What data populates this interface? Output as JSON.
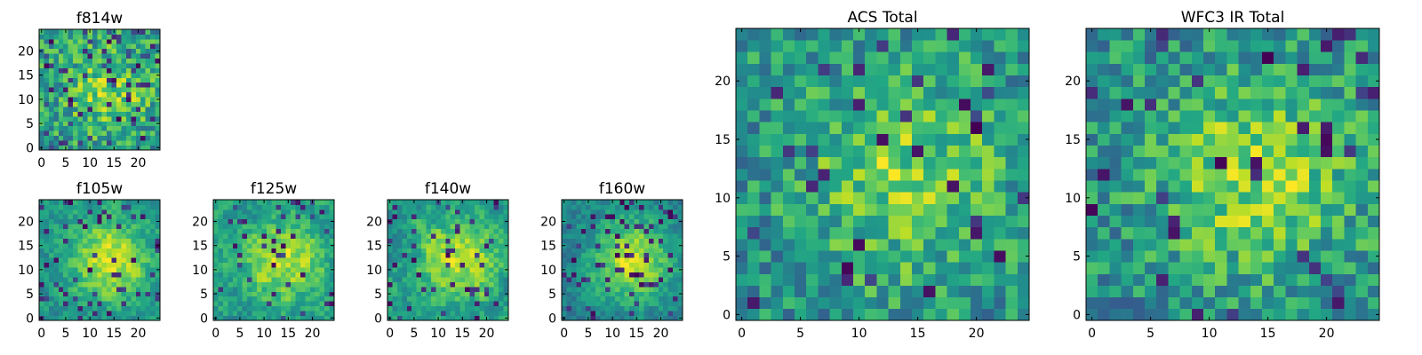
{
  "chart_data": [
    {
      "id": "f814w",
      "type": "heatmap",
      "title": "f814w",
      "grid_size": 25,
      "seed": 11,
      "center_strength": 0.25,
      "dark_fraction": 0.1,
      "smoothing": 0,
      "xticks": [
        0,
        5,
        10,
        15,
        20
      ],
      "yticks": [
        0,
        5,
        10,
        15,
        20
      ],
      "xlim": [
        -0.5,
        24.5
      ],
      "ylim": [
        -0.5,
        24.5
      ],
      "colormap": "viridis"
    },
    {
      "id": "f105w",
      "type": "heatmap",
      "title": "f105w",
      "grid_size": 25,
      "seed": 23,
      "center_strength": 0.45,
      "dark_fraction": 0.08,
      "smoothing": 1,
      "xticks": [
        0,
        5,
        10,
        15,
        20
      ],
      "yticks": [
        0,
        5,
        10,
        15,
        20
      ],
      "xlim": [
        -0.5,
        24.5
      ],
      "ylim": [
        -0.5,
        24.5
      ],
      "colormap": "viridis"
    },
    {
      "id": "f125w",
      "type": "heatmap",
      "title": "f125w",
      "grid_size": 25,
      "seed": 37,
      "center_strength": 0.35,
      "dark_fraction": 0.07,
      "smoothing": 1,
      "xticks": [
        0,
        5,
        10,
        15,
        20
      ],
      "yticks": [
        0,
        5,
        10,
        15,
        20
      ],
      "xlim": [
        -0.5,
        24.5
      ],
      "ylim": [
        -0.5,
        24.5
      ],
      "colormap": "viridis"
    },
    {
      "id": "f140w",
      "type": "heatmap",
      "title": "f140w",
      "grid_size": 25,
      "seed": 51,
      "center_strength": 0.4,
      "dark_fraction": 0.09,
      "smoothing": 1,
      "xticks": [
        0,
        5,
        10,
        15,
        20
      ],
      "yticks": [
        0,
        5,
        10,
        15,
        20
      ],
      "xlim": [
        -0.5,
        24.5
      ],
      "ylim": [
        -0.5,
        24.5
      ],
      "colormap": "viridis"
    },
    {
      "id": "f160w",
      "type": "heatmap",
      "title": "f160w",
      "grid_size": 25,
      "seed": 67,
      "center_strength": 0.55,
      "dark_fraction": 0.08,
      "smoothing": 1,
      "xticks": [
        0,
        5,
        10,
        15,
        20
      ],
      "yticks": [
        0,
        5,
        10,
        15,
        20
      ],
      "xlim": [
        -0.5,
        24.5
      ],
      "ylim": [
        -0.5,
        24.5
      ],
      "colormap": "viridis"
    },
    {
      "id": "acs-total",
      "type": "heatmap",
      "title": "ACS Total",
      "grid_size": 25,
      "seed": 79,
      "center_strength": 0.3,
      "dark_fraction": 0.06,
      "smoothing": 0,
      "xticks": [
        0,
        5,
        10,
        15,
        20
      ],
      "yticks": [
        0,
        5,
        10,
        15,
        20
      ],
      "xlim": [
        -0.5,
        24.5
      ],
      "ylim": [
        -0.5,
        24.5
      ],
      "colormap": "viridis"
    },
    {
      "id": "wfc3-ir-total",
      "type": "heatmap",
      "title": "WFC3 IR Total",
      "grid_size": 25,
      "seed": 97,
      "center_strength": 0.35,
      "dark_fraction": 0.06,
      "smoothing": 0,
      "xticks": [
        0,
        5,
        10,
        15,
        20
      ],
      "yticks": [
        0,
        5,
        10,
        15,
        20
      ],
      "xlim": [
        -0.5,
        24.5
      ],
      "ylim": [
        -0.5,
        24.5
      ],
      "colormap": "viridis"
    }
  ]
}
